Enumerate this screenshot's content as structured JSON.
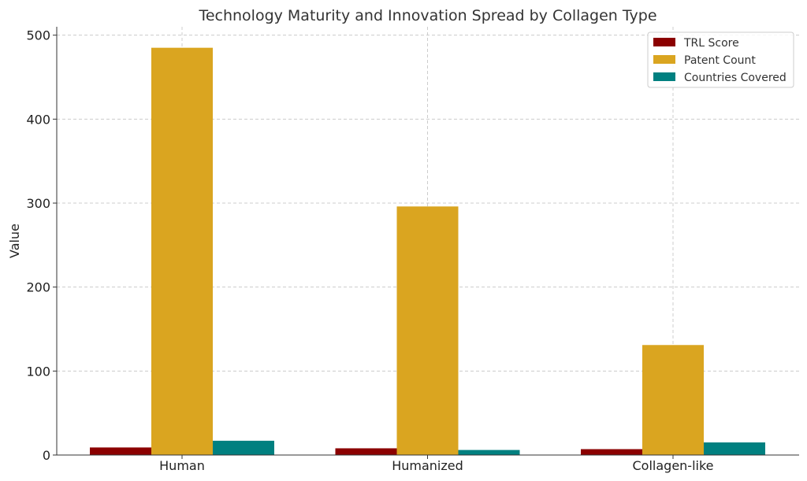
{
  "chart_data": {
    "type": "bar",
    "title": "Technology Maturity and Innovation Spread by Collagen Type",
    "xlabel": "",
    "ylabel": "Value",
    "categories": [
      "Human",
      "Humanized",
      "Collagen-like"
    ],
    "series": [
      {
        "name": "TRL Score",
        "values": [
          9,
          8,
          7
        ],
        "color": "#8b0000"
      },
      {
        "name": "Patent Count",
        "values": [
          485,
          296,
          131
        ],
        "color": "#daa520"
      },
      {
        "name": "Countries Covered",
        "values": [
          17,
          6,
          15
        ],
        "color": "#008080"
      }
    ],
    "ylim": [
      0,
      510
    ],
    "yticks": [
      0,
      100,
      200,
      300,
      400,
      500
    ],
    "grid": true,
    "legend_position": "top-right"
  }
}
